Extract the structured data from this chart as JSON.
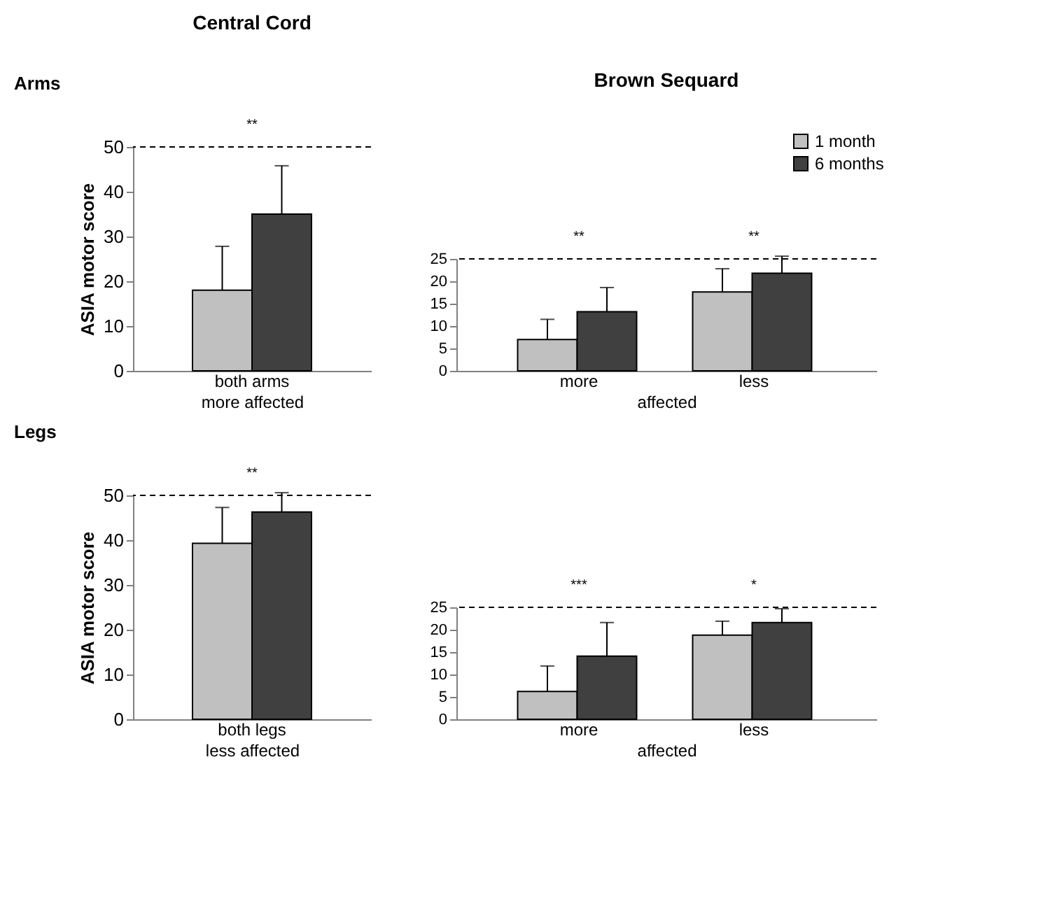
{
  "chart_data": [
    {
      "type": "bar",
      "title": "Central Cord",
      "ylabel": "ASIA motor score",
      "xlabel": "more affected",
      "categories": [
        "both arms"
      ],
      "series": [
        {
          "color": "#c0c0c0",
          "values": [
            18
          ],
          "errors": [
            [
              18,
              27.8
            ]
          ]
        },
        {
          "color": "#404040",
          "values": [
            35
          ],
          "errors": [
            [
              35,
              45.8
            ]
          ]
        }
      ],
      "ylim": [
        0,
        50
      ],
      "yticks": [
        0,
        10,
        20,
        30,
        40,
        50
      ],
      "ref_lines": [
        {
          "axis": "y",
          "value": 50,
          "line_style": "dashed"
        }
      ],
      "annotations": [
        "Arms",
        "**"
      ]
    },
    {
      "type": "bar",
      "title": "Brown Sequard",
      "xlabel": "affected",
      "categories": [
        "more",
        "less"
      ],
      "series": [
        {
          "name": "1 month",
          "color": "#c0c0c0",
          "values": [
            7,
            17.6
          ],
          "errors": [
            [
              7,
              11.5
            ],
            [
              17.6,
              22.8
            ]
          ]
        },
        {
          "name": "6 months",
          "color": "#404040",
          "values": [
            13.2,
            21.8
          ],
          "errors": [
            [
              13.2,
              18.6
            ],
            [
              21.8,
              25.6
            ]
          ]
        }
      ],
      "ylim": [
        0,
        25
      ],
      "yticks": [
        0,
        5,
        10,
        15,
        20,
        25
      ],
      "ref_lines": [
        {
          "axis": "y",
          "value": 25,
          "line_style": "dashed"
        }
      ],
      "legend": "top right",
      "annotations": [
        "**",
        "**"
      ]
    },
    {
      "type": "bar",
      "ylabel": "ASIA motor score",
      "xlabel": "less affected",
      "categories": [
        "both legs"
      ],
      "series": [
        {
          "color": "#c0c0c0",
          "values": [
            39.3
          ],
          "errors": [
            [
              39.3,
              47.3
            ]
          ]
        },
        {
          "color": "#404040",
          "values": [
            46.3
          ],
          "errors": [
            [
              46.3,
              50.6
            ]
          ]
        }
      ],
      "ylim": [
        0,
        50
      ],
      "yticks": [
        0,
        10,
        20,
        30,
        40,
        50
      ],
      "ref_lines": [
        {
          "axis": "y",
          "value": 50,
          "line_style": "dashed"
        }
      ],
      "annotations": [
        "Legs",
        "**"
      ]
    },
    {
      "type": "bar",
      "xlabel": "affected",
      "categories": [
        "more",
        "less"
      ],
      "series": [
        {
          "color": "#c0c0c0",
          "values": [
            6.2,
            18.8
          ],
          "errors": [
            [
              6.2,
              11.9
            ],
            [
              18.8,
              21.9
            ]
          ]
        },
        {
          "color": "#404040",
          "values": [
            14.1,
            21.6
          ],
          "errors": [
            [
              14.1,
              21.6
            ],
            [
              21.6,
              24.7
            ]
          ]
        }
      ],
      "ylim": [
        0,
        25
      ],
      "yticks": [
        0,
        5,
        10,
        15,
        20,
        25
      ],
      "ref_lines": [
        {
          "axis": "y",
          "value": 25,
          "line_style": "dashed"
        }
      ],
      "annotations": [
        "***",
        "*"
      ]
    }
  ]
}
